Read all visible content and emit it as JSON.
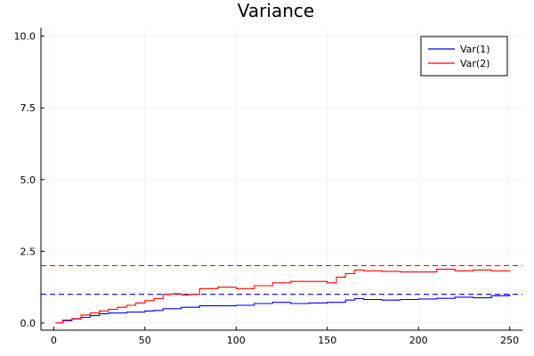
{
  "chart_data": {
    "type": "line",
    "title": "Variance",
    "xlabel": "",
    "ylabel": "",
    "xlim": [
      -7,
      257
    ],
    "ylim": [
      -0.25,
      10.3
    ],
    "xticks": [
      0,
      50,
      100,
      150,
      200,
      250
    ],
    "xtick_labels": [
      "0",
      "50",
      "100",
      "150",
      "200",
      "250"
    ],
    "yticks": [
      0,
      2.5,
      5,
      7.5,
      10
    ],
    "ytick_labels": [
      "0.0",
      "2.5",
      "5.0",
      "7.5",
      "10.0"
    ],
    "grid": true,
    "legend_position": "top-right",
    "series": [
      {
        "name": "Var(1)",
        "color": "#0000ff",
        "x": [
          1,
          5,
          10,
          15,
          20,
          25,
          30,
          40,
          50,
          55,
          60,
          70,
          80,
          90,
          100,
          110,
          120,
          130,
          140,
          150,
          160,
          165,
          170,
          180,
          190,
          200,
          210,
          220,
          230,
          240,
          250
        ],
        "y": [
          0.0,
          0.08,
          0.14,
          0.2,
          0.26,
          0.32,
          0.35,
          0.38,
          0.42,
          0.44,
          0.5,
          0.55,
          0.6,
          0.6,
          0.62,
          0.68,
          0.72,
          0.68,
          0.7,
          0.72,
          0.8,
          0.85,
          0.82,
          0.8,
          0.82,
          0.84,
          0.86,
          0.9,
          0.88,
          0.95,
          1.0
        ]
      },
      {
        "name": "Var(2)",
        "color": "#ff0000",
        "x": [
          1,
          5,
          10,
          15,
          20,
          25,
          30,
          35,
          40,
          45,
          50,
          55,
          60,
          65,
          70,
          75,
          80,
          90,
          100,
          110,
          120,
          130,
          140,
          150,
          155,
          160,
          165,
          170,
          180,
          190,
          200,
          210,
          220,
          230,
          240,
          250
        ],
        "y": [
          0.0,
          0.1,
          0.15,
          0.28,
          0.35,
          0.42,
          0.48,
          0.55,
          0.62,
          0.7,
          0.78,
          0.85,
          1.0,
          1.02,
          0.98,
          1.0,
          1.2,
          1.25,
          1.2,
          1.3,
          1.4,
          1.45,
          1.45,
          1.4,
          1.6,
          1.72,
          1.85,
          1.82,
          1.8,
          1.78,
          1.78,
          1.88,
          1.82,
          1.85,
          1.82,
          1.8
        ]
      }
    ],
    "reference_lines": [
      {
        "y": 1.0,
        "color": "#0000ff",
        "style": "dashed"
      },
      {
        "y": 2.0,
        "color": "#ff0000",
        "style": "dashed"
      }
    ]
  }
}
